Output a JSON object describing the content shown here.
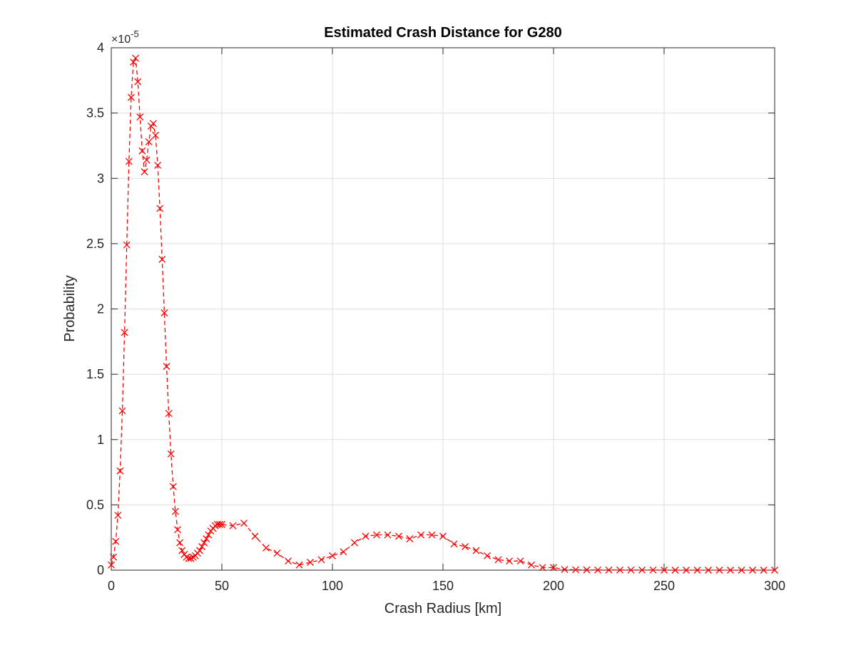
{
  "chart_data": {
    "type": "line",
    "title": "Estimated Crash Distance for G280",
    "xlabel": "Crash Radius [km]",
    "ylabel": "Probability",
    "y_exponent_label": "×10",
    "y_exponent_value": "-5",
    "y_scale_factor": 1e-05,
    "xlim": [
      0,
      300
    ],
    "ylim": [
      0,
      4
    ],
    "x_ticks": [
      "0",
      "50",
      "100",
      "150",
      "200",
      "250",
      "300"
    ],
    "y_ticks": [
      "0",
      "0.5",
      "1",
      "1.5",
      "2",
      "2.5",
      "3",
      "3.5",
      "4"
    ],
    "grid": true,
    "series": [
      {
        "line_style": "dashed",
        "marker": "x",
        "color": "#ff0000",
        "x": [
          0,
          1,
          2,
          3,
          4,
          5,
          6,
          7,
          8,
          9,
          10,
          11,
          12,
          13,
          14,
          15,
          16,
          17,
          18,
          19,
          20,
          21,
          22,
          23,
          24,
          25,
          26,
          27,
          28,
          29,
          30,
          31,
          32,
          33,
          34,
          35,
          36,
          37,
          38,
          39,
          40,
          41,
          42,
          43,
          44,
          45,
          46,
          47,
          48,
          49,
          50,
          55,
          60,
          65,
          70,
          75,
          80,
          85,
          90,
          95,
          100,
          105,
          110,
          115,
          120,
          125,
          130,
          135,
          140,
          145,
          150,
          155,
          160,
          165,
          170,
          175,
          180,
          185,
          190,
          195,
          200,
          205,
          210,
          215,
          220,
          225,
          230,
          235,
          240,
          245,
          250,
          255,
          260,
          265,
          270,
          275,
          280,
          285,
          290,
          295,
          300
        ],
        "y": [
          0.04,
          0.1,
          0.22,
          0.42,
          0.76,
          1.22,
          1.82,
          2.49,
          3.13,
          3.62,
          3.89,
          3.92,
          3.74,
          3.47,
          3.21,
          3.05,
          3.14,
          3.28,
          3.4,
          3.42,
          3.33,
          3.1,
          2.77,
          2.38,
          1.97,
          1.56,
          1.2,
          0.89,
          0.64,
          0.45,
          0.31,
          0.21,
          0.15,
          0.12,
          0.1,
          0.09,
          0.09,
          0.1,
          0.11,
          0.13,
          0.15,
          0.18,
          0.21,
          0.24,
          0.27,
          0.3,
          0.32,
          0.34,
          0.35,
          0.35,
          0.35,
          0.34,
          0.36,
          0.26,
          0.17,
          0.13,
          0.07,
          0.04,
          0.06,
          0.08,
          0.11,
          0.14,
          0.21,
          0.26,
          0.27,
          0.27,
          0.26,
          0.24,
          0.27,
          0.27,
          0.26,
          0.2,
          0.18,
          0.15,
          0.11,
          0.08,
          0.07,
          0.07,
          0.04,
          0.02,
          0.02,
          0.005,
          0.003,
          0.002,
          0.001,
          0.001,
          0.001,
          0.001,
          0.001,
          0.001,
          0,
          0,
          0,
          0,
          0,
          0,
          0,
          0,
          0,
          0,
          0
        ]
      }
    ]
  }
}
